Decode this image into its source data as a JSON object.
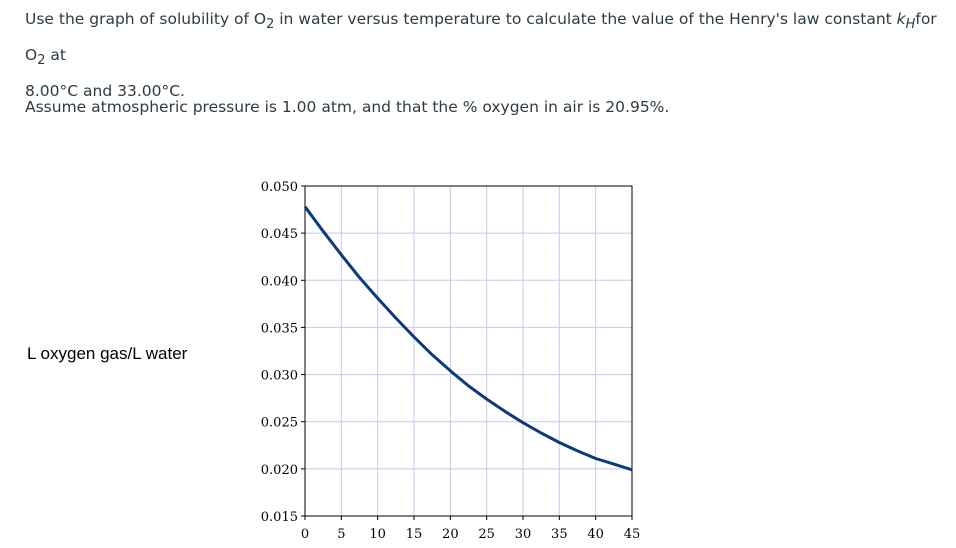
{
  "question": {
    "line1_pre": "Use the graph of solubility of O",
    "line1_sub": "2",
    "line1_mid": " in water versus temperature to calculate the value of the Henry's law constant ",
    "kh_k": "k",
    "kh_sub": "H",
    "line1_post": "for O",
    "line1_sub2": "2",
    "line1_end": " at",
    "line2": "8.00°C and 33.00°C.",
    "assumption": "Assume atmospheric pressure is 1.00 atm, and that the % oxygen in air is 20.95%."
  },
  "chart_data": {
    "type": "line",
    "title": "",
    "xlabel": "",
    "ylabel": "L oxygen gas/L water",
    "xlim": [
      0,
      45
    ],
    "ylim": [
      0.015,
      0.05
    ],
    "x_ticks": [
      "0",
      "5",
      "10",
      "15",
      "20",
      "25",
      "30",
      "35",
      "40",
      "45"
    ],
    "y_ticks": [
      "0.015",
      "0.020",
      "0.025",
      "0.030",
      "0.035",
      "0.040",
      "0.045",
      "0.050"
    ],
    "grid": true,
    "line_color": "#0d3a7a",
    "grid_color": "#c8c8f0",
    "series": [
      {
        "x": [
          0,
          2.5,
          5,
          7.5,
          10,
          12.5,
          15,
          17.5,
          20,
          22.5,
          25,
          27.5,
          30,
          32.5,
          35,
          37.5,
          40,
          42.5,
          45
        ],
        "values": [
          0.0478,
          0.0452,
          0.0427,
          0.0403,
          0.0381,
          0.036,
          0.034,
          0.0321,
          0.0304,
          0.0288,
          0.0274,
          0.0261,
          0.0249,
          0.0238,
          0.0228,
          0.0219,
          0.0211,
          0.0205,
          0.0199
        ]
      }
    ]
  }
}
